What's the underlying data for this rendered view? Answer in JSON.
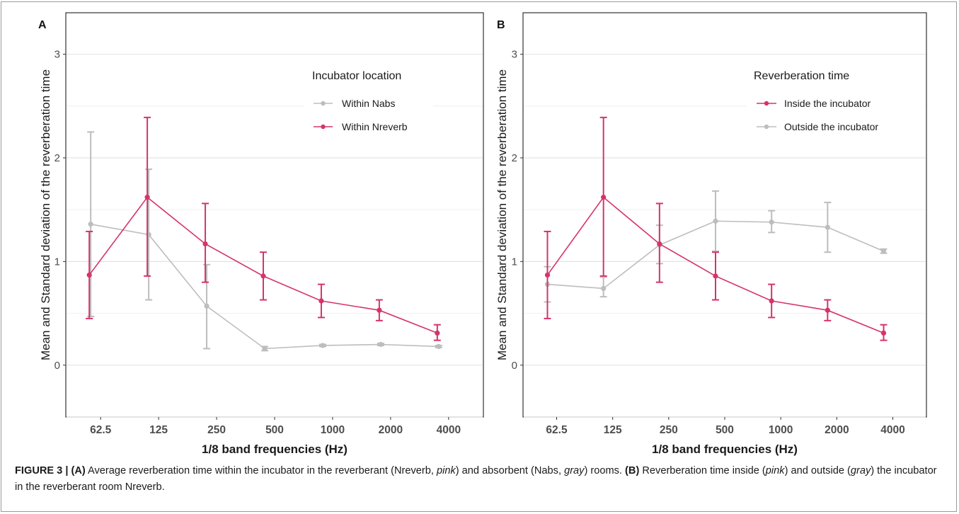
{
  "chart_data": [
    {
      "panel": "A",
      "type": "line",
      "categories": [
        "62.5",
        "125",
        "250",
        "500",
        "1000",
        "2000",
        "4000"
      ],
      "xlabel": "1/8 band frequencies (Hz)",
      "ylabel": "Mean and Standard deviation of the reverberation time",
      "ylim": [
        -0.5,
        3.4
      ],
      "yticks": [
        0,
        1,
        2,
        3
      ],
      "grid": true,
      "legend": {
        "title": "Incubator location",
        "placement": "top-right"
      },
      "series": [
        {
          "name": "Within Nabs",
          "color": "#bdbdbd",
          "values": [
            1.36,
            1.26,
            0.57,
            0.16,
            0.19,
            0.2,
            0.18
          ],
          "lower": [
            0.47,
            0.63,
            0.16,
            0.14,
            0.18,
            0.19,
            0.17
          ],
          "upper": [
            2.25,
            1.89,
            0.97,
            0.18,
            0.2,
            0.21,
            0.19
          ]
        },
        {
          "name": "Within Nreverb",
          "color": "#d6336c",
          "values": [
            0.87,
            1.62,
            1.17,
            0.86,
            0.62,
            0.53,
            0.31
          ],
          "lower": [
            0.45,
            0.86,
            0.8,
            0.63,
            0.46,
            0.43,
            0.24
          ],
          "upper": [
            1.29,
            2.39,
            1.56,
            1.09,
            0.78,
            0.63,
            0.39
          ]
        }
      ]
    },
    {
      "panel": "B",
      "type": "line",
      "categories": [
        "62.5",
        "125",
        "250",
        "500",
        "1000",
        "2000",
        "4000"
      ],
      "xlabel": "1/8 band frequencies (Hz)",
      "ylabel": "Mean and Standard deviation of the reverberation time",
      "ylim": [
        -0.5,
        3.4
      ],
      "yticks": [
        0,
        1,
        2,
        3
      ],
      "grid": true,
      "legend": {
        "title": "Reverberation time",
        "placement": "top-right"
      },
      "series": [
        {
          "name": "Inside the incubator",
          "color": "#d6336c",
          "values": [
            0.87,
            1.62,
            1.17,
            0.86,
            0.62,
            0.53,
            0.31
          ],
          "lower": [
            0.45,
            0.86,
            0.8,
            0.63,
            0.46,
            0.43,
            0.24
          ],
          "upper": [
            1.29,
            2.39,
            1.56,
            1.09,
            0.78,
            0.63,
            0.39
          ]
        },
        {
          "name": "Outside the incubator",
          "color": "#bdbdbd",
          "values": [
            0.78,
            0.74,
            1.16,
            1.39,
            1.38,
            1.33,
            1.1
          ],
          "lower": [
            0.61,
            0.66,
            0.98,
            1.1,
            1.28,
            1.09,
            1.08
          ],
          "upper": [
            0.95,
            0.85,
            1.35,
            1.68,
            1.49,
            1.57,
            1.12
          ]
        }
      ]
    }
  ],
  "caption": {
    "label": "FIGURE 3 |",
    "part_a_label": "(A)",
    "part_a_text_1": "Average reverberation time within the incubator in the reverberant (Nreverb,",
    "part_a_pink": "pink",
    "part_a_text_2": ") and absorbent (Nabs,",
    "part_a_gray": "gray",
    "part_a_text_3": ") rooms.",
    "part_b_label": "(B)",
    "part_b_text_1": "Reverberation time inside (",
    "part_b_pink": "pink",
    "part_b_text_2": ") and outside (",
    "part_b_gray": "gray",
    "part_b_text_3": ") the incubator in the reverberant room Nreverb."
  }
}
